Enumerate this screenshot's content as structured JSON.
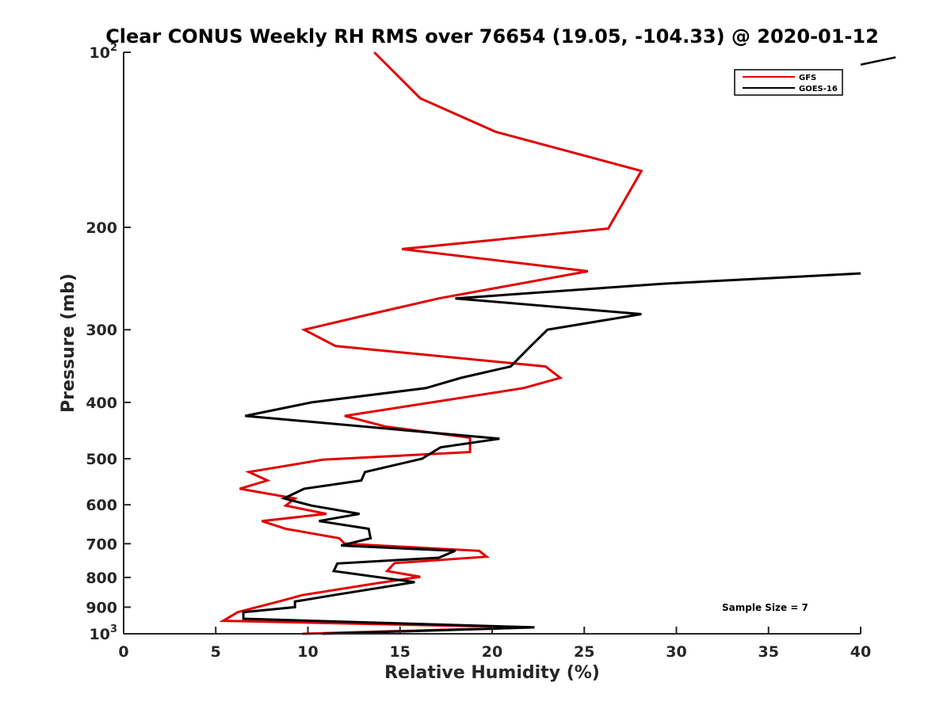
{
  "chart_data": {
    "type": "line",
    "title": "Clear CONUS Weekly RH RMS over 76654 (19.05, -104.33) @ 2020-01-12",
    "xlabel": "Relative Humidity (%)",
    "ylabel": "Pressure (mb)",
    "xlim": [
      0,
      40
    ],
    "ylim": [
      1000,
      100
    ],
    "yscale": "log",
    "xticks": [
      0,
      5,
      10,
      15,
      20,
      25,
      30,
      35,
      40
    ],
    "xtick_labels": [
      "0",
      "5",
      "10",
      "15",
      "20",
      "25",
      "30",
      "35",
      "40"
    ],
    "yticks": [
      {
        "value": 100,
        "label": "10",
        "exp": "2"
      },
      {
        "value": 200,
        "label": "200",
        "exp": ""
      },
      {
        "value": 300,
        "label": "300",
        "exp": ""
      },
      {
        "value": 400,
        "label": "400",
        "exp": ""
      },
      {
        "value": 500,
        "label": "500",
        "exp": ""
      },
      {
        "value": 600,
        "label": "600",
        "exp": ""
      },
      {
        "value": 700,
        "label": "700",
        "exp": ""
      },
      {
        "value": 800,
        "label": "800",
        "exp": ""
      },
      {
        "value": 900,
        "label": "900",
        "exp": ""
      },
      {
        "value": 1000,
        "label": "10",
        "exp": "3"
      }
    ],
    "legend_position": "top-right",
    "annotation": "Sample Size = 7",
    "series": [
      {
        "name": "GFS",
        "color": "#e00000",
        "points": [
          [
            13.6,
            100
          ],
          [
            16.1,
            120
          ],
          [
            20.2,
            137
          ],
          [
            28.1,
            160
          ],
          [
            26.3,
            201
          ],
          [
            15.1,
            218
          ],
          [
            25.2,
            238
          ],
          [
            17.1,
            265
          ],
          [
            13.4,
            282
          ],
          [
            9.8,
            300
          ],
          [
            11.5,
            320
          ],
          [
            22.9,
            347
          ],
          [
            23.7,
            363
          ],
          [
            21.7,
            378
          ],
          [
            12.0,
            422
          ],
          [
            14.2,
            440
          ],
          [
            18.8,
            460
          ],
          [
            18.8,
            487
          ],
          [
            10.8,
            502
          ],
          [
            6.8,
            527
          ],
          [
            7.8,
            545
          ],
          [
            6.3,
            563
          ],
          [
            9.3,
            585
          ],
          [
            8.8,
            602
          ],
          [
            11.0,
            622
          ],
          [
            7.5,
            640
          ],
          [
            8.8,
            660
          ],
          [
            11.7,
            685
          ],
          [
            12.0,
            700
          ],
          [
            19.3,
            720
          ],
          [
            19.7,
            737
          ],
          [
            14.7,
            756
          ],
          [
            14.3,
            780
          ],
          [
            16.1,
            798
          ],
          [
            13.8,
            818
          ],
          [
            9.7,
            858
          ],
          [
            8.6,
            877
          ],
          [
            6.2,
            918
          ],
          [
            5.4,
            950
          ],
          [
            22.1,
            975
          ],
          [
            9.7,
            1000
          ]
        ]
      },
      {
        "name": "GOES-16",
        "color": "#000000",
        "points": [
          [
            40.0,
            240
          ],
          [
            29.3,
            250
          ],
          [
            18.0,
            265
          ],
          [
            28.1,
            282
          ],
          [
            23.0,
            300
          ],
          [
            22.1,
            320
          ],
          [
            21.0,
            347
          ],
          [
            18.3,
            363
          ],
          [
            16.4,
            378
          ],
          [
            10.2,
            400
          ],
          [
            6.6,
            422
          ],
          [
            20.4,
            462
          ],
          [
            17.2,
            478
          ],
          [
            16.2,
            500
          ],
          [
            13.1,
            527
          ],
          [
            12.9,
            545
          ],
          [
            9.8,
            563
          ],
          [
            8.7,
            585
          ],
          [
            10.2,
            602
          ],
          [
            12.8,
            622
          ],
          [
            10.6,
            640
          ],
          [
            13.3,
            660
          ],
          [
            13.4,
            685
          ],
          [
            11.8,
            705
          ],
          [
            18.0,
            720
          ],
          [
            17.1,
            740
          ],
          [
            11.6,
            757
          ],
          [
            11.4,
            780
          ],
          [
            15.8,
            815
          ],
          [
            11.4,
            858
          ],
          [
            9.3,
            880
          ],
          [
            9.3,
            900
          ],
          [
            6.5,
            918
          ],
          [
            6.5,
            942
          ],
          [
            22.3,
            975
          ],
          [
            10.8,
            1000
          ]
        ]
      }
    ],
    "extra_segment": {
      "color": "#000000",
      "points": [
        [
          40.0,
          105
        ],
        [
          41.9,
          102
        ]
      ]
    }
  }
}
